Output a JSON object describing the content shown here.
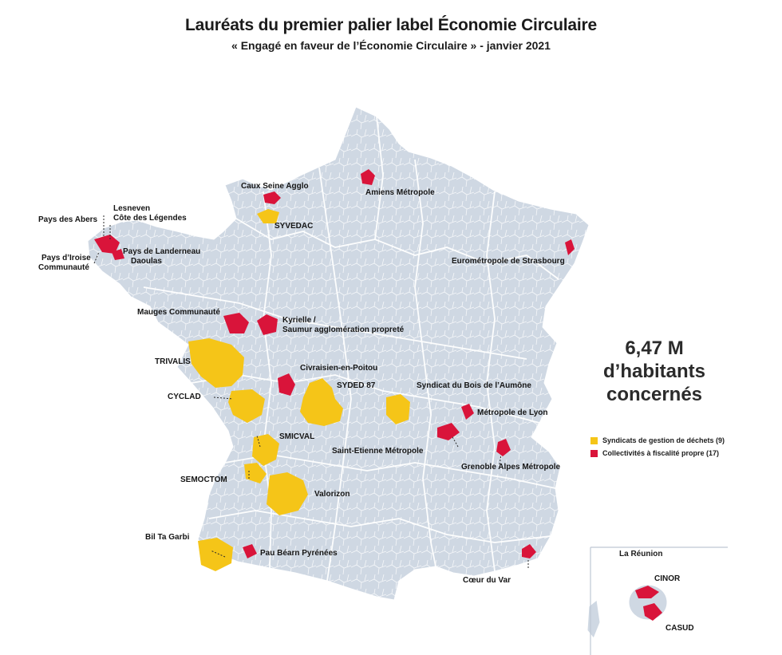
{
  "header": {
    "title": "Lauréats du premier palier label Économie Circulaire",
    "subtitle": "« Engagé en faveur de l’Économie Circulaire » - janvier 2021"
  },
  "colors": {
    "syndicats": "#f5c518",
    "collectivites": "#d9143a",
    "land": "#cfd8e3",
    "borders": "#ffffff"
  },
  "stat": {
    "value": "6,47 M",
    "line2": "d’habitants",
    "line3": "concernés"
  },
  "legend": {
    "syndicats": "Syndicats de gestion de déchets (9)",
    "collectivites": "Collectivités à fiscalité propre (17)"
  },
  "labels": {
    "caux": "Caux Seine Agglo",
    "amiens": "Amiens Métropole",
    "syvedac": "SYVEDAC",
    "lesneven1": "Lesneven",
    "lesneven2": "Côte des Légendes",
    "abers": "Pays des Abers",
    "landerneau1": "Pays de Landerneau",
    "landerneau2": "Daoulas",
    "iroise1": "Pays d’Iroise",
    "iroise2": "Communauté",
    "strasbourg": "Eurométropole de Strasbourg",
    "mauges": "Mauges Communauté",
    "kyrielle1": "Kyrielle /",
    "kyrielle2": "Saumur agglomération propreté",
    "trivalis": "TRIVALIS",
    "civraisien": "Civraisien-en-Poitou",
    "syded": "SYDED 87",
    "aumone": "Syndicat du Bois de l’Aumône",
    "cyclad": "CYCLAD",
    "lyon": "Métropole de Lyon",
    "smicval": "SMICVAL",
    "stetienne": "Saint-Etienne Métropole",
    "grenoble": "Grenoble Alpes Métropole",
    "semoctom": "SEMOCTOM",
    "valorizon": "Valorizon",
    "biltagarbi": "Bil Ta Garbi",
    "pau": "Pau Béarn Pyrénées",
    "coeurvar": "Cœur du Var"
  },
  "inset": {
    "title": "La Réunion",
    "cinor": "CINOR",
    "casud": "CASUD"
  }
}
